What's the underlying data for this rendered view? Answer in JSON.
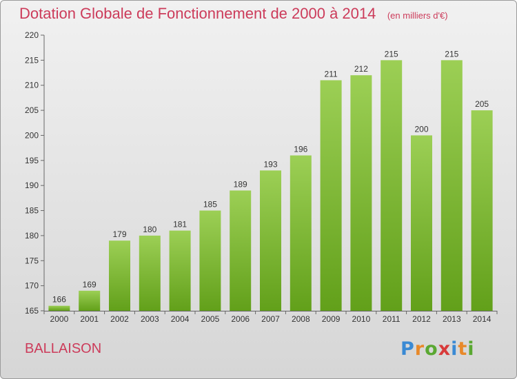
{
  "title": "Dotation Globale de Fonctionnement de 2000 à 2014",
  "unit": "(en milliers d'€)",
  "commune": "BALLAISON",
  "brand": {
    "letters": [
      "P",
      "r",
      "o",
      "x",
      "i",
      "t",
      "i"
    ],
    "colors": [
      "#3a8ad4",
      "#e8892a",
      "#5aa832",
      "#d83a3a",
      "#3a8ad4",
      "#e8892a",
      "#5aa832"
    ]
  },
  "colors": {
    "bar_top": "#9ccf55",
    "bar_bottom": "#62a01a",
    "title": "#cc3b5a"
  },
  "chart_data": {
    "type": "bar",
    "categories": [
      "2000",
      "2001",
      "2002",
      "2003",
      "2004",
      "2005",
      "2006",
      "2007",
      "2008",
      "2009",
      "2010",
      "2011",
      "2012",
      "2013",
      "2014"
    ],
    "values": [
      166,
      169,
      179,
      180,
      181,
      185,
      189,
      193,
      196,
      211,
      212,
      215,
      200,
      215,
      205
    ],
    "ylim": [
      165,
      220
    ],
    "yticks": [
      165,
      170,
      175,
      180,
      185,
      190,
      195,
      200,
      205,
      210,
      215,
      220
    ],
    "grid": false,
    "data_labels": true
  }
}
